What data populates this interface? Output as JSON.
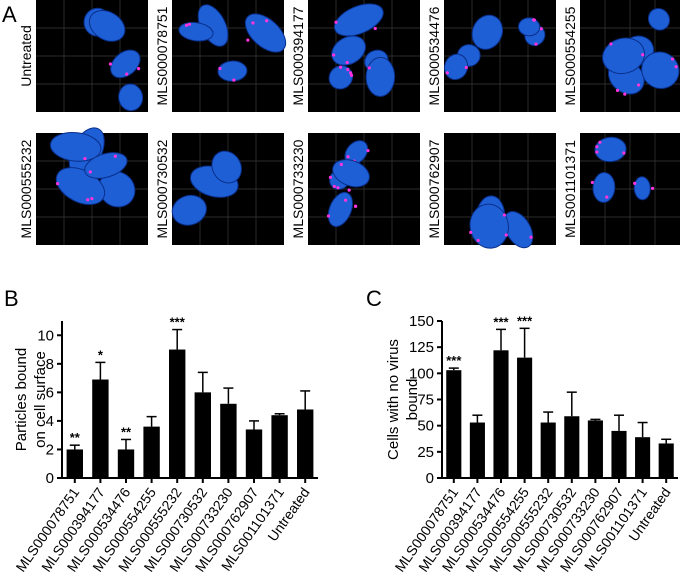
{
  "panels": {
    "a": {
      "label": "A",
      "images": [
        "Untreated",
        "MLS000078751",
        "MLS000394177",
        "MLS000534476",
        "MLS000554255",
        "MLS000555232",
        "MLS000730532",
        "MLS000733230",
        "MLS000762907",
        "MLS001101371"
      ]
    }
  },
  "chart_data": [
    {
      "type": "bar",
      "panel": "B",
      "ylabel": [
        "Particles bound",
        "on cell surface"
      ],
      "categories": [
        "MLS000078751",
        "MLS000394177",
        "MLS000534476",
        "MLS000554255",
        "MLS000555232",
        "MLS000730532",
        "MLS000733230",
        "MLS000762907",
        "MLS001101371",
        "Untreated"
      ],
      "values": [
        2.0,
        6.9,
        2.0,
        3.6,
        9.0,
        6.0,
        5.2,
        3.4,
        4.4,
        4.8
      ],
      "error": [
        0.3,
        1.2,
        0.7,
        0.7,
        1.4,
        1.4,
        1.1,
        0.6,
        0.1,
        1.3
      ],
      "significance": [
        "**",
        "*",
        "**",
        null,
        "***",
        null,
        null,
        null,
        null,
        null
      ],
      "color": "#000000",
      "ylim": [
        0,
        11
      ],
      "yticks": [
        0,
        2,
        4,
        6,
        8,
        10
      ]
    },
    {
      "type": "bar",
      "panel": "C",
      "ylabel": [
        "Cells with no virus",
        "bound"
      ],
      "categories": [
        "MLS000078751",
        "MLS000394177",
        "MLS000534476",
        "MLS000554255",
        "MLS000555232",
        "MLS000730532",
        "MLS000733230",
        "MLS000762907",
        "MLS001101371",
        "Untreated"
      ],
      "values": [
        103,
        53,
        122,
        115,
        53,
        59,
        55,
        45,
        39,
        33
      ],
      "error": [
        2,
        7,
        20,
        28,
        10,
        23,
        1,
        15,
        14,
        4
      ],
      "significance": [
        "***",
        null,
        "***",
        "***",
        null,
        null,
        null,
        null,
        null,
        null
      ],
      "color": "#000000",
      "ylim": [
        0,
        150
      ],
      "yticks": [
        0,
        25,
        50,
        75,
        100,
        125,
        150
      ]
    }
  ]
}
